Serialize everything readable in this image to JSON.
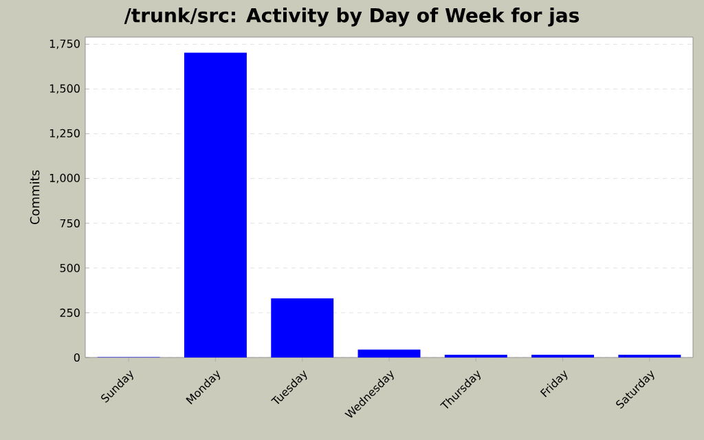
{
  "chart_data": {
    "type": "bar",
    "title": "/trunk/src: Activity by Day of Week for jas",
    "ylabel": "Commits",
    "categories": [
      "Sunday",
      "Monday",
      "Tuesday",
      "Wednesday",
      "Thursday",
      "Friday",
      "Saturday"
    ],
    "values": [
      2,
      1704,
      330,
      44,
      15,
      15,
      15
    ],
    "color": "#0000ff",
    "ylim": [
      0,
      1790
    ],
    "yticks": [
      {
        "value": 0,
        "label": "0"
      },
      {
        "value": 250,
        "label": "250"
      },
      {
        "value": 500,
        "label": "500"
      },
      {
        "value": 750,
        "label": "750"
      },
      {
        "value": 1000,
        "label": "1,000"
      },
      {
        "value": 1250,
        "label": "1,250"
      },
      {
        "value": 1500,
        "label": "1,500"
      },
      {
        "value": 1750,
        "label": "1,750"
      }
    ],
    "grid": "y"
  }
}
